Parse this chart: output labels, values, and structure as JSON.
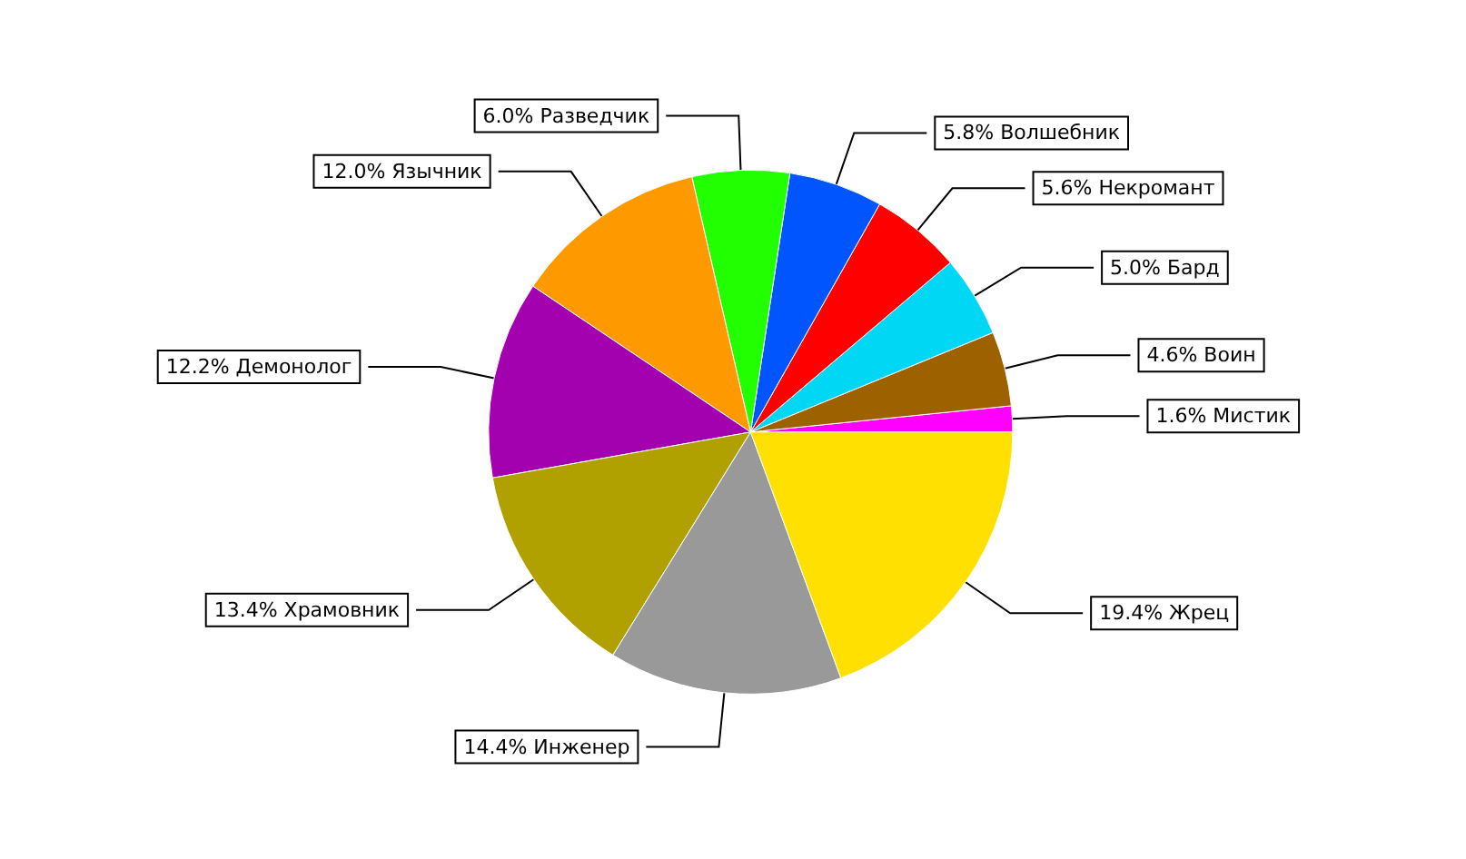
{
  "chart_data": {
    "type": "pie",
    "categories": [
      "Мистик",
      "Воин",
      "Бард",
      "Некромант",
      "Волшебник",
      "Разведчик",
      "Язычник",
      "Демонолог",
      "Храмовник",
      "Инженер",
      "Жрец"
    ],
    "values": [
      1.6,
      4.6,
      5.0,
      5.6,
      5.8,
      6.0,
      12.0,
      12.2,
      13.4,
      14.4,
      19.4
    ],
    "value_labels": [
      "1.6%",
      "4.6%",
      "5.0%",
      "5.6%",
      "5.8%",
      "6.0%",
      "12.0%",
      "12.2%",
      "13.4%",
      "14.4%",
      "19.4%"
    ],
    "colors": [
      "#ff00ff",
      "#9e6100",
      "#00d7f5",
      "#ff0000",
      "#0055ff",
      "#22ff00",
      "#ff9900",
      "#a300b0",
      "#b0a000",
      "#999999",
      "#ffe000"
    ],
    "legend": false
  }
}
